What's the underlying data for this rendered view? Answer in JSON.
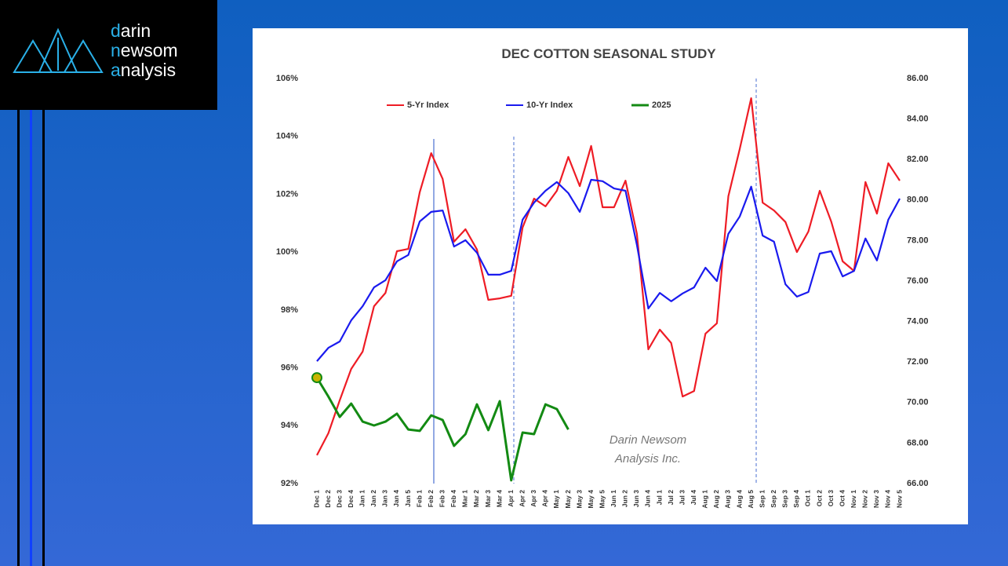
{
  "logo": {
    "lines": [
      "darin",
      "newsom",
      "analysis"
    ]
  },
  "chart_data": {
    "type": "line",
    "title": "DEC COTTON SEASONAL STUDY",
    "watermark": [
      "Darin Newsom",
      "Analysis Inc."
    ],
    "categories": [
      "Dec 1",
      "Dec 2",
      "Dec 3",
      "Dec 4",
      "Jan 1",
      "Jan 2",
      "Jan 3",
      "Jan 4",
      "Jan 5",
      "Feb 1",
      "Feb 2",
      "Feb 3",
      "Feb 4",
      "Mar 1",
      "Mar 2",
      "Mar 3",
      "Mar 4",
      "Apr 1",
      "Apr 2",
      "Apr 3",
      "Apr 4",
      "May 1",
      "May 2",
      "May 3",
      "May 4",
      "May 5",
      "Jun 1",
      "Jun 2",
      "Jun 3",
      "Jun 4",
      "Jul 1",
      "Jul 2",
      "Jul 3",
      "Jul 4",
      "Aug 1",
      "Aug 2",
      "Aug 3",
      "Aug 4",
      "Aug 5",
      "Sep 1",
      "Sep 2",
      "Sep 3",
      "Sep 4",
      "Oct 1",
      "Oct 2",
      "Oct 3",
      "Oct 4",
      "Nov 1",
      "Nov 2",
      "Nov 3",
      "Nov 4",
      "Nov 5"
    ],
    "series": [
      {
        "name": "5-Yr Index",
        "color": "#ee1c25",
        "values": [
          92.98,
          93.74,
          94.88,
          95.96,
          96.56,
          98.13,
          98.59,
          100.03,
          100.11,
          102.07,
          103.42,
          102.53,
          100.36,
          100.79,
          100.09,
          98.35,
          98.4,
          98.49,
          100.85,
          101.85,
          101.58,
          102.12,
          103.29,
          102.28,
          103.67,
          101.55,
          101.55,
          102.47,
          100.63,
          96.64,
          97.32,
          96.86,
          95.01,
          95.2,
          97.18,
          97.54,
          101.93,
          103.56,
          105.32,
          101.71,
          101.44,
          101.04,
          100.0,
          100.71,
          102.12,
          101.06,
          99.68,
          99.35,
          102.42,
          101.33,
          103.07,
          102.47
        ]
      },
      {
        "name": "10-Yr Index",
        "color": "#1a1aee",
        "values": [
          96.23,
          96.69,
          96.91,
          97.64,
          98.13,
          98.78,
          99.03,
          99.68,
          99.9,
          101.06,
          101.39,
          101.44,
          100.19,
          100.41,
          99.98,
          99.22,
          99.22,
          99.35,
          101.12,
          101.71,
          102.12,
          102.42,
          102.04,
          101.39,
          102.5,
          102.45,
          102.2,
          102.12,
          100.25,
          98.05,
          98.59,
          98.3,
          98.57,
          98.78,
          99.46,
          99.0,
          100.63,
          101.23,
          102.26,
          100.57,
          100.36,
          98.89,
          98.46,
          98.62,
          99.95,
          100.03,
          99.16,
          99.35,
          100.47,
          99.71,
          101.12,
          101.85
        ]
      },
      {
        "name": "2025",
        "color": "#138a13",
        "axis": "y2",
        "values": [
          71.23,
          70.3,
          69.29,
          69.95,
          69.06,
          68.87,
          69.06,
          69.45,
          68.67,
          68.6,
          69.37,
          69.14,
          67.86,
          68.44,
          69.91,
          68.64,
          70.07,
          66.16,
          68.52,
          68.44,
          69.91,
          69.68,
          68.67,
          null,
          null,
          null,
          null,
          null,
          null,
          null,
          null,
          null,
          null,
          null,
          null,
          null,
          null,
          null,
          null,
          null,
          null,
          null,
          null,
          null,
          null,
          null,
          null,
          null,
          null,
          null,
          null,
          null
        ]
      }
    ],
    "ylim": [
      92,
      106
    ],
    "yticks": [
      {
        "value": 92,
        "label": "92%"
      },
      {
        "value": 94,
        "label": "94%"
      },
      {
        "value": 96,
        "label": "96%"
      },
      {
        "value": 98,
        "label": "98%"
      },
      {
        "value": 100,
        "label": "100%"
      },
      {
        "value": 102,
        "label": "102%"
      },
      {
        "value": 104,
        "label": "104%"
      },
      {
        "value": 106,
        "label": "106%"
      }
    ],
    "y2lim": [
      66,
      86
    ],
    "y2ticks": [
      {
        "value": 66,
        "label": "66.00"
      },
      {
        "value": 68,
        "label": "68.00"
      },
      {
        "value": 70,
        "label": "70.00"
      },
      {
        "value": 72,
        "label": "72.00"
      },
      {
        "value": 74,
        "label": "74.00"
      },
      {
        "value": 76,
        "label": "76.00"
      },
      {
        "value": 78,
        "label": "78.00"
      },
      {
        "value": 80,
        "label": "80.00"
      },
      {
        "value": 82,
        "label": "82.00"
      },
      {
        "value": 84,
        "label": "84.00"
      },
      {
        "value": 86,
        "label": "86.00"
      }
    ],
    "grid": false
  }
}
